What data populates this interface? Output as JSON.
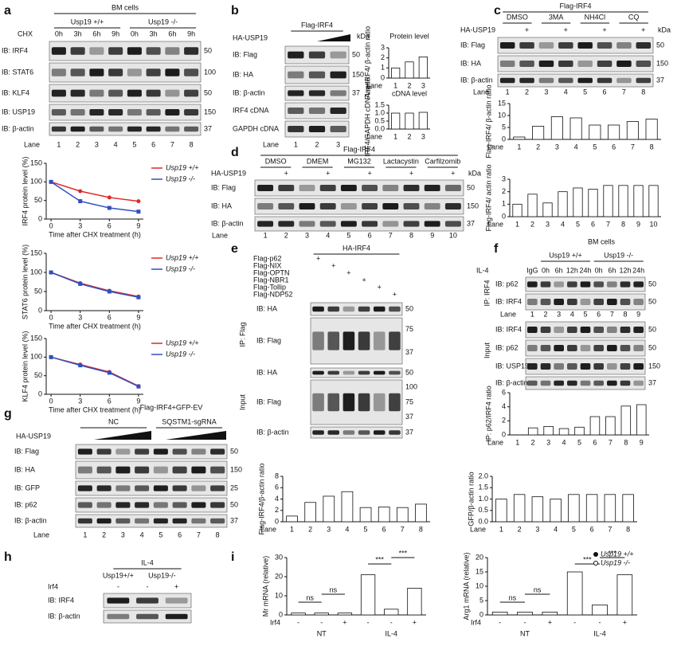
{
  "panel_letters": [
    "a",
    "b",
    "c",
    "d",
    "e",
    "f",
    "g",
    "h",
    "i"
  ],
  "blots": {
    "a": {
      "title": "BM cells",
      "genotypes": [
        "Usp19 +/+",
        "Usp19 -/-"
      ],
      "treatment": "CHX",
      "times": [
        "0h",
        "3h",
        "6h",
        "9h",
        "0h",
        "3h",
        "6h",
        "9h"
      ],
      "rows": [
        "IB: IRF4",
        "IB: STAT6",
        "IB: KLF4",
        "IB: USP19",
        "IB: β-actin"
      ],
      "kda": [
        [
          50
        ],
        [
          100
        ],
        [
          50
        ],
        [
          150
        ],
        [
          37
        ]
      ],
      "lane_label": "Lane",
      "lanes": [
        "1",
        "2",
        "3",
        "4",
        "5",
        "6",
        "7",
        "8"
      ]
    },
    "b": {
      "title": "Flag-IRF4",
      "ha": "HA-USP19",
      "kda_label": "kDa",
      "rows": [
        "IB: Flag",
        "IB: HA",
        "IB: β-actin",
        "IRF4 cDNA",
        "GAPDH cDNA"
      ],
      "kda": [
        [
          50
        ],
        [
          150
        ],
        [
          37
        ],
        null,
        null
      ],
      "lane_label": "Lane",
      "lanes": [
        "1",
        "2",
        "3"
      ]
    },
    "c": {
      "title": "Flag-IRF4",
      "ha": "HA-USP19",
      "treatments": [
        "DMSO",
        "3MA",
        "NH4Cl",
        "CQ"
      ],
      "ha_signs": [
        null,
        "+",
        null,
        "+",
        null,
        "+",
        null,
        "+"
      ],
      "kda_label": "kDa",
      "rows": [
        "IB: Flag",
        "IB: HA",
        "IB: β-actin"
      ],
      "kda": [
        [
          50
        ],
        [
          150
        ],
        [
          37
        ]
      ],
      "lane_label": "Lane",
      "lanes": [
        "1",
        "2",
        "3",
        "4",
        "5",
        "6",
        "7",
        "8"
      ]
    },
    "d": {
      "title": "Flag-IRF4",
      "ha": "HA-USP19",
      "treatments": [
        "DMSO",
        "DMEM",
        "MG132",
        "Lactacystin",
        "Carfilzomib"
      ],
      "ha_signs": [
        null,
        "+",
        null,
        "+",
        null,
        "+",
        null,
        "+",
        null,
        "+"
      ],
      "kda_label": "kDa",
      "rows": [
        "IB: Flag",
        "IB: HA",
        "IB: β-actin"
      ],
      "kda": [
        [
          50
        ],
        [
          150
        ],
        [
          37
        ]
      ],
      "lane_label": "Lane",
      "lanes": [
        "1",
        "2",
        "3",
        "4",
        "5",
        "6",
        "7",
        "8",
        "9",
        "10"
      ]
    },
    "e": {
      "title": "HA-IRF4",
      "constructs": [
        "Flag-p62",
        "Flag-NIX",
        "Flag-OPTN",
        "Flag-NBR1",
        "Flag-Tollip",
        "Flag-NDP52"
      ],
      "signs": [
        "+",
        "+",
        "+",
        "+",
        "+",
        "+"
      ],
      "ip_label": "IP: Flag",
      "input_label": "Input",
      "ip_rows": [
        "IB: HA",
        "IB: Flag"
      ],
      "ip_kda": [
        [
          50
        ],
        [
          75,
          37
        ]
      ],
      "input_rows": [
        "IB: HA",
        "IB: Flag",
        "IB: β-actin"
      ],
      "input_kda": [
        [
          50
        ],
        [
          100,
          75,
          37
        ],
        [
          37
        ]
      ]
    },
    "f": {
      "title": "BM cells",
      "genotypes": [
        "Usp19 +/+",
        "Usp19 -/-"
      ],
      "treatment": "IL-4",
      "control": "IgG",
      "times": [
        "0h",
        "6h",
        "12h",
        "24h",
        "0h",
        "6h",
        "12h",
        "24h"
      ],
      "ip_label": "IP: IRF4",
      "input_label": "Input",
      "ip_rows": [
        "IB: p62",
        "IB: IRF4"
      ],
      "ip_kda": [
        [
          50
        ],
        [
          50
        ]
      ],
      "input_rows": [
        "IB: IRF4",
        "IB: p62",
        "IB: USP19",
        "IB: β-actin"
      ],
      "input_kda": [
        [
          50
        ],
        [
          50
        ],
        [
          150
        ],
        [
          37
        ]
      ],
      "lane_label": "Lane",
      "lanes": [
        "1",
        "2",
        "3",
        "4",
        "5",
        "6",
        "7",
        "8",
        "9"
      ]
    },
    "g": {
      "title": "Flag-IRF4+GFP-EV",
      "groups": [
        "NC",
        "SQSTM1-sgRNA"
      ],
      "ha": "HA-USP19",
      "rows": [
        "IB: Flag",
        "IB: HA",
        "IB: GFP",
        "IB: p62",
        "IB: β-actin"
      ],
      "kda": [
        [
          50
        ],
        [
          150
        ],
        [
          25
        ],
        [
          50
        ],
        [
          37
        ]
      ],
      "lane_label": "Lane",
      "lanes": [
        "1",
        "2",
        "3",
        "4",
        "5",
        "6",
        "7",
        "8"
      ]
    },
    "h": {
      "treatment": "IL-4",
      "genotypes": [
        "Usp19+/+",
        "Usp19-/-"
      ],
      "irf4": "Irf4",
      "signs": [
        "-",
        "-",
        "+"
      ],
      "rows": [
        "IB: IRF4",
        "IB: β-actin"
      ]
    }
  },
  "chart_data": [
    {
      "type": "line",
      "ylabel": "IRF4 protein level (%)",
      "xlabel": "Time after CHX treatment (h)",
      "x": [
        0,
        3,
        6,
        9
      ],
      "xlim": [
        -0.5,
        9.5
      ],
      "xticks": [
        0,
        3,
        6,
        9
      ],
      "ylim": [
        0,
        150
      ],
      "yticks": [
        0,
        50,
        100,
        150
      ],
      "series": [
        {
          "name": "Usp19 +/+",
          "color": "#e02828",
          "values": [
            100,
            75,
            58,
            48
          ]
        },
        {
          "name": "Usp19 -/-",
          "color": "#3050c0",
          "values": [
            100,
            48,
            30,
            20
          ]
        }
      ]
    },
    {
      "type": "line",
      "ylabel": "STAT6 protein level (%)",
      "xlabel": "Time after CHX treatment (h)",
      "x": [
        0,
        3,
        6,
        9
      ],
      "xlim": [
        -0.5,
        9.5
      ],
      "xticks": [
        0,
        3,
        6,
        9
      ],
      "ylim": [
        0,
        150
      ],
      "yticks": [
        0,
        50,
        100,
        150
      ],
      "series": [
        {
          "name": "Usp19 +/+",
          "color": "#e02828",
          "values": [
            100,
            72,
            52,
            37
          ]
        },
        {
          "name": "Usp19 -/-",
          "color": "#3050c0",
          "values": [
            100,
            70,
            50,
            35
          ]
        }
      ]
    },
    {
      "type": "line",
      "ylabel": "KLF4 protein level (%)",
      "xlabel": "Time after CHX treatment (h)",
      "x": [
        0,
        3,
        6,
        9
      ],
      "xlim": [
        -0.5,
        9.5
      ],
      "xticks": [
        0,
        3,
        6,
        9
      ],
      "ylim": [
        0,
        150
      ],
      "yticks": [
        0,
        50,
        100,
        150
      ],
      "series": [
        {
          "name": "Usp19 +/+",
          "color": "#e02828",
          "values": [
            100,
            80,
            60,
            22
          ]
        },
        {
          "name": "Usp19 -/-",
          "color": "#3050c0",
          "values": [
            100,
            78,
            58,
            21
          ]
        }
      ]
    },
    {
      "type": "bar",
      "title": "Protein level",
      "ylabel": "Flag-IRF4/ β-actin ratio",
      "xlabel": "Lane",
      "categories": [
        "1",
        "2",
        "3"
      ],
      "values": [
        1,
        1.6,
        2.1
      ],
      "color": "#ffffff",
      "ylim": [
        0,
        3
      ],
      "yticks": [
        0,
        1,
        2,
        3
      ]
    },
    {
      "type": "bar",
      "title": "cDNA level",
      "ylabel": "IRF4/GAPDH cDNA ratio",
      "xlabel": "Lane",
      "categories": [
        "1",
        "2",
        "3"
      ],
      "values": [
        1,
        1,
        1.05
      ],
      "color": "#ffffff",
      "ylim": [
        0,
        1.5
      ],
      "yticks": [
        {
          "value": 0,
          "label": "0.0"
        },
        {
          "value": 0.5,
          "label": "0.5"
        },
        {
          "value": 1,
          "label": "1.0"
        },
        {
          "value": 1.5,
          "label": "1.5"
        }
      ]
    },
    {
      "type": "bar",
      "ylabel": "Flag-IRF4/ β-actin ratio",
      "xlabel": "Lane",
      "categories": [
        "1",
        "2",
        "3",
        "4",
        "5",
        "6",
        "7",
        "8"
      ],
      "values": [
        1,
        5.5,
        9.5,
        9,
        6,
        6,
        7.5,
        8.5
      ],
      "color": "#ffffff",
      "ylim": [
        0,
        15
      ],
      "yticks": [
        0,
        5,
        10,
        15
      ]
    },
    {
      "type": "bar",
      "ylabel": "Flag-IRF4/ actin ratio",
      "xlabel": "Lane",
      "categories": [
        "1",
        "2",
        "3",
        "4",
        "5",
        "6",
        "7",
        "8",
        "9",
        "10"
      ],
      "values": [
        1,
        1.8,
        1.1,
        2,
        2.3,
        2.2,
        2.5,
        2.5,
        2.5,
        2.5
      ],
      "color": "#ffffff",
      "ylim": [
        0,
        3
      ],
      "yticks": [
        0,
        1,
        2,
        3
      ]
    },
    {
      "type": "bar",
      "ylabel": "IP: p62/IRF4 ratio",
      "xlabel": "Lane",
      "categories": [
        "1",
        "2",
        "3",
        "4",
        "5",
        "6",
        "7",
        "8",
        "9"
      ],
      "values": [
        0,
        1,
        1.2,
        0.9,
        1.1,
        2.6,
        2.6,
        4.1,
        4.3
      ],
      "color": "#ffffff",
      "ylim": [
        0,
        6
      ],
      "yticks": [
        0,
        2,
        4,
        6
      ]
    },
    {
      "type": "bar",
      "ylabel": "Flag-IRF4/β-actin ratio",
      "xlabel": "Lane",
      "categories": [
        "1",
        "2",
        "3",
        "4",
        "5",
        "6",
        "7",
        "8"
      ],
      "values": [
        1,
        3.4,
        4.5,
        5.3,
        2.5,
        2.6,
        2.5,
        3.1
      ],
      "color": "#ffffff",
      "ylim": [
        0,
        8
      ],
      "yticks": [
        0,
        2,
        4,
        6,
        8
      ]
    },
    {
      "type": "bar",
      "ylabel": "GFP/β-actin ratio",
      "xlabel": "Lane",
      "categories": [
        "1",
        "2",
        "3",
        "4",
        "5",
        "6",
        "7",
        "8"
      ],
      "values": [
        1,
        1.2,
        1.1,
        1,
        1.2,
        1.2,
        1.2,
        1.2
      ],
      "color": "#ffffff",
      "ylim": [
        0,
        2
      ],
      "yticks": [
        {
          "value": 0,
          "label": "0.0"
        },
        {
          "value": 0.5,
          "label": "0.5"
        },
        {
          "value": 1,
          "label": "1.0"
        },
        {
          "value": 1.5,
          "label": "1.5"
        },
        {
          "value": 2,
          "label": "2.0"
        }
      ]
    },
    {
      "type": "bar",
      "ylabel": "Mr mRNA (relative)",
      "row_label": "Irf4",
      "categories": [
        "-",
        "-",
        "+",
        "-",
        "-",
        "+"
      ],
      "groups": [
        "NT",
        "IL-4"
      ],
      "values": [
        1,
        1,
        1,
        21,
        3,
        14
      ],
      "color": "#ffffff",
      "ylim": [
        0,
        30
      ],
      "yticks": [
        0,
        10,
        20,
        30
      ],
      "annotations": [
        "ns",
        "ns",
        "***",
        "***"
      ]
    },
    {
      "type": "bar",
      "ylabel": "Arg1 mRNA (relative)",
      "row_label": "Irf4",
      "categories": [
        "-",
        "-",
        "+",
        "-",
        "-",
        "+"
      ],
      "groups": [
        "NT",
        "IL-4"
      ],
      "values": [
        1,
        1,
        1,
        15,
        3.5,
        14
      ],
      "color": "#ffffff",
      "ylim": [
        0,
        20
      ],
      "yticks": [
        0,
        5,
        10,
        15,
        20
      ],
      "annotations": [
        "ns",
        "ns",
        "***",
        "***"
      ],
      "legend": [
        "Usp19 +/+",
        "Usp19 -/-"
      ]
    }
  ]
}
